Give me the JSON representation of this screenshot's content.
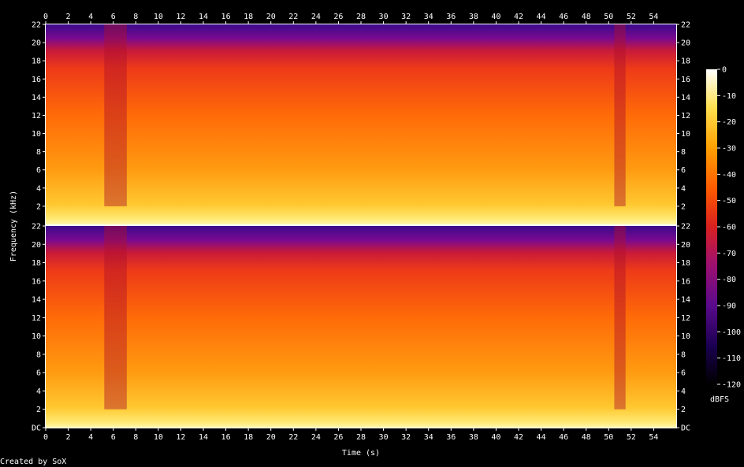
{
  "chart_data": {
    "type": "heatmap",
    "xlabel": "Time (s)",
    "ylabel": "Frequency (kHz)",
    "x_ticks": [
      "0",
      "2",
      "4",
      "6",
      "8",
      "10",
      "12",
      "14",
      "16",
      "18",
      "20",
      "22",
      "24",
      "26",
      "28",
      "30",
      "32",
      "34",
      "36",
      "38",
      "40",
      "42",
      "44",
      "46",
      "48",
      "50",
      "52",
      "54"
    ],
    "y_ticks_upper": [
      "2",
      "4",
      "6",
      "8",
      "10",
      "12",
      "14",
      "16",
      "18",
      "20",
      "22"
    ],
    "y_ticks_lower": [
      "DC",
      "2",
      "4",
      "6",
      "8",
      "10",
      "12",
      "14",
      "16",
      "18",
      "20",
      "22"
    ],
    "xlim": [
      0,
      56
    ],
    "ylim": [
      0,
      22
    ],
    "channels": 2,
    "colorbar": {
      "label": "dBFS",
      "ticks": [
        "0",
        "-10",
        "-20",
        "-30",
        "-40",
        "-50",
        "-60",
        "-70",
        "-80",
        "-90",
        "-100",
        "-110",
        "-120"
      ],
      "range": [
        -120,
        0
      ],
      "colors": [
        "#000000",
        "#1a0050",
        "#5a0a8c",
        "#9e1070",
        "#d92020",
        "#ff5a00",
        "#ffa000",
        "#ffe050",
        "#ffffff"
      ]
    },
    "quiet_bands_s": [
      [
        5.2,
        7.2
      ],
      [
        50.5,
        51.5
      ]
    ],
    "footer": "Created by SoX"
  }
}
